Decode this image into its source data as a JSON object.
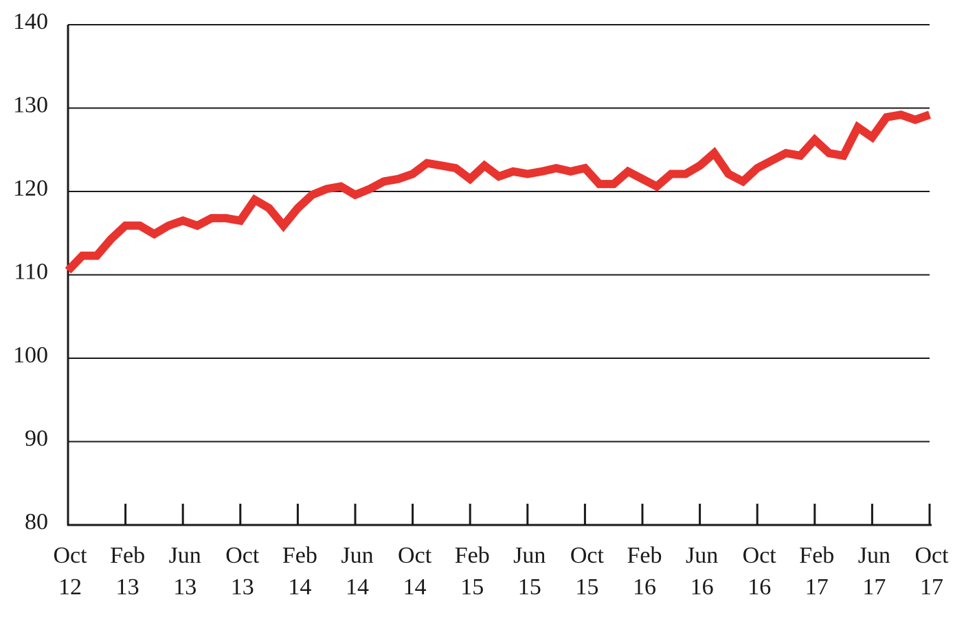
{
  "chart_data": {
    "type": "line",
    "title": "",
    "xlabel": "",
    "ylabel": "",
    "ylim": [
      80,
      140
    ],
    "yticks": [
      "80",
      "90",
      "100",
      "110",
      "120",
      "130",
      "140"
    ],
    "grid": true,
    "legend": "none",
    "colors": {
      "series": "#e8342f",
      "grid": "#1a1a1a",
      "axis": "#1a1a1a"
    },
    "x_ticks": [
      {
        "month": "Oct",
        "year": "12"
      },
      {
        "month": "Feb",
        "year": "13"
      },
      {
        "month": "Jun",
        "year": "13"
      },
      {
        "month": "Oct",
        "year": "13"
      },
      {
        "month": "Feb",
        "year": "14"
      },
      {
        "month": "Jun",
        "year": "14"
      },
      {
        "month": "Oct",
        "year": "14"
      },
      {
        "month": "Feb",
        "year": "15"
      },
      {
        "month": "Jun",
        "year": "15"
      },
      {
        "month": "Oct",
        "year": "15"
      },
      {
        "month": "Feb",
        "year": "16"
      },
      {
        "month": "Jun",
        "year": "16"
      },
      {
        "month": "Oct",
        "year": "16"
      },
      {
        "month": "Feb",
        "year": "17"
      },
      {
        "month": "Jun",
        "year": "17"
      },
      {
        "month": "Oct",
        "year": "17"
      }
    ],
    "series": [
      {
        "x": [
          "2012-10",
          "2012-11",
          "2012-12",
          "2013-01",
          "2013-02",
          "2013-03",
          "2013-04",
          "2013-05",
          "2013-06",
          "2013-07",
          "2013-08",
          "2013-09",
          "2013-10",
          "2013-11",
          "2013-12",
          "2014-01",
          "2014-02",
          "2014-03",
          "2014-04",
          "2014-05",
          "2014-06",
          "2014-07",
          "2014-08",
          "2014-09",
          "2014-10",
          "2014-11",
          "2014-12",
          "2015-01",
          "2015-02",
          "2015-03",
          "2015-04",
          "2015-05",
          "2015-06",
          "2015-07",
          "2015-08",
          "2015-09",
          "2015-10",
          "2015-11",
          "2015-12",
          "2016-01",
          "2016-02",
          "2016-03",
          "2016-04",
          "2016-05",
          "2016-06",
          "2016-07",
          "2016-08",
          "2016-09",
          "2016-10",
          "2016-11",
          "2016-12",
          "2017-01",
          "2017-02",
          "2017-03",
          "2017-04",
          "2017-05",
          "2017-06",
          "2017-07",
          "2017-08",
          "2017-09",
          "2017-10"
        ],
        "values": [
          110.5,
          112.3,
          112.3,
          114.3,
          115.9,
          115.9,
          114.9,
          115.9,
          116.5,
          115.9,
          116.8,
          116.8,
          116.5,
          119.0,
          118.0,
          115.9,
          118.0,
          119.6,
          120.3,
          120.6,
          119.6,
          120.3,
          121.2,
          121.5,
          122.1,
          123.4,
          123.1,
          122.8,
          121.5,
          123.1,
          121.8,
          122.4,
          122.1,
          122.4,
          122.8,
          122.4,
          122.8,
          120.9,
          120.9,
          122.4,
          121.5,
          120.6,
          122.1,
          122.1,
          123.1,
          124.6,
          122.1,
          121.2,
          122.8,
          123.7,
          124.6,
          124.3,
          126.2,
          124.6,
          124.3,
          127.7,
          126.5,
          128.9,
          129.2,
          128.6,
          129.2
        ]
      }
    ]
  }
}
